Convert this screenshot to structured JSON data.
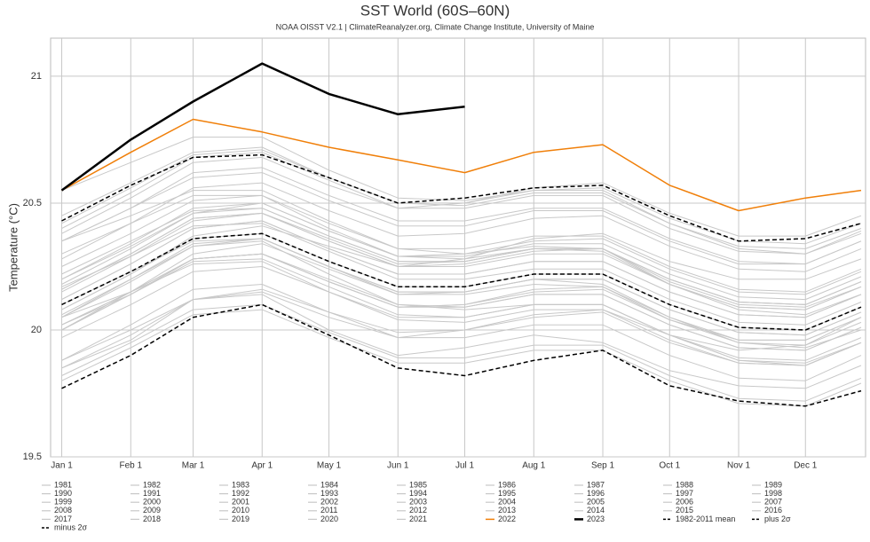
{
  "chart_data": {
    "type": "line",
    "title": "SST World (60S–60N)",
    "subtitle": "NOAA OISST V2.1 | ClimateReanalyzer.org, Climate Change Institute, University of Maine",
    "y_label": "Temperature (°C)",
    "x": [
      1,
      32,
      60,
      91,
      121,
      152,
      182,
      213,
      244,
      274,
      305,
      335,
      360
    ],
    "xlim": [
      -4,
      362
    ],
    "xticks": [
      {
        "value": 1,
        "label": "Jan 1"
      },
      {
        "value": 32,
        "label": "Feb 1"
      },
      {
        "value": 60,
        "label": "Mar 1"
      },
      {
        "value": 91,
        "label": "Apr 1"
      },
      {
        "value": 121,
        "label": "May 1"
      },
      {
        "value": 152,
        "label": "Jun 1"
      },
      {
        "value": 182,
        "label": "Jul 1"
      },
      {
        "value": 213,
        "label": "Aug 1"
      },
      {
        "value": 244,
        "label": "Sep 1"
      },
      {
        "value": 274,
        "label": "Oct 1"
      },
      {
        "value": 305,
        "label": "Nov 1"
      },
      {
        "value": 335,
        "label": "Dec 1"
      }
    ],
    "ylim": [
      19.5,
      21.15
    ],
    "yticks": [
      19.5,
      20,
      20.5,
      21
    ],
    "grid": true,
    "series": [
      {
        "name": "1981",
        "color": "#c8c8c8",
        "values": [
          19.85,
          19.96,
          20.12,
          20.14,
          20.0,
          19.9,
          19.93,
          19.98,
          19.95,
          19.84,
          19.78,
          19.77,
          19.86
        ]
      },
      {
        "name": "1982",
        "color": "#c8c8c8",
        "values": [
          19.88,
          20.0,
          20.12,
          20.15,
          20.05,
          19.97,
          20.0,
          20.06,
          20.08,
          19.98,
          19.92,
          19.94,
          20.05
        ]
      },
      {
        "name": "1983",
        "color": "#c8c8c8",
        "values": [
          20.05,
          20.2,
          20.33,
          20.35,
          20.22,
          20.1,
          20.08,
          20.1,
          20.1,
          19.98,
          19.88,
          19.87,
          19.95
        ]
      },
      {
        "name": "1984",
        "color": "#c8c8c8",
        "values": [
          19.82,
          19.95,
          20.08,
          20.1,
          19.99,
          19.89,
          19.89,
          19.94,
          19.94,
          19.82,
          19.73,
          19.72,
          19.81
        ]
      },
      {
        "name": "1985",
        "color": "#c8c8c8",
        "values": [
          19.8,
          19.93,
          20.06,
          20.08,
          19.97,
          19.87,
          19.87,
          19.92,
          19.92,
          19.8,
          19.71,
          19.7,
          19.79
        ]
      },
      {
        "name": "1986",
        "color": "#c8c8c8",
        "values": [
          19.85,
          19.98,
          20.12,
          20.16,
          20.07,
          19.99,
          20.0,
          20.05,
          20.07,
          19.95,
          19.87,
          19.86,
          19.95
        ]
      },
      {
        "name": "1987",
        "color": "#c8c8c8",
        "values": [
          20.0,
          20.15,
          20.3,
          20.34,
          20.24,
          20.14,
          20.15,
          20.2,
          20.18,
          20.05,
          19.95,
          19.93,
          20.0
        ]
      },
      {
        "name": "1988",
        "color": "#c8c8c8",
        "values": [
          20.02,
          20.14,
          20.27,
          20.28,
          20.17,
          20.06,
          20.05,
          20.1,
          20.1,
          19.98,
          19.88,
          19.86,
          19.95
        ]
      },
      {
        "name": "1989",
        "color": "#c8c8c8",
        "values": [
          19.88,
          20.02,
          20.16,
          20.18,
          20.07,
          19.97,
          19.97,
          20.02,
          20.02,
          19.9,
          19.81,
          19.8,
          19.9
        ]
      },
      {
        "name": "1990",
        "color": "#c8c8c8",
        "values": [
          20.0,
          20.14,
          20.28,
          20.3,
          20.2,
          20.1,
          20.09,
          20.14,
          20.14,
          20.02,
          19.93,
          19.92,
          20.01
        ]
      },
      {
        "name": "1991",
        "color": "#c8c8c8",
        "values": [
          20.02,
          20.15,
          20.28,
          20.3,
          20.19,
          20.09,
          20.1,
          20.15,
          20.16,
          20.04,
          19.96,
          19.96,
          20.05
        ]
      },
      {
        "name": "1992",
        "color": "#c8c8c8",
        "values": [
          20.05,
          20.15,
          20.26,
          20.27,
          20.15,
          20.04,
          20.03,
          20.08,
          20.08,
          19.96,
          19.87,
          19.86,
          19.95
        ]
      },
      {
        "name": "1993",
        "color": "#c8c8c8",
        "values": [
          19.97,
          20.1,
          20.23,
          20.25,
          20.15,
          20.05,
          20.05,
          20.1,
          20.1,
          19.98,
          19.89,
          19.88,
          19.97
        ]
      },
      {
        "name": "1994",
        "color": "#c8c8c8",
        "values": [
          20.02,
          20.15,
          20.28,
          20.3,
          20.19,
          20.09,
          20.1,
          20.16,
          20.17,
          20.05,
          19.96,
          19.96,
          20.05
        ]
      },
      {
        "name": "1995",
        "color": "#c8c8c8",
        "values": [
          20.1,
          20.23,
          20.35,
          20.36,
          20.25,
          20.14,
          20.14,
          20.18,
          20.17,
          20.04,
          19.95,
          19.94,
          20.03
        ]
      },
      {
        "name": "1996",
        "color": "#c8c8c8",
        "values": [
          20.0,
          20.14,
          20.28,
          20.3,
          20.19,
          20.09,
          20.09,
          20.14,
          20.14,
          20.02,
          19.93,
          19.92,
          20.01
        ]
      },
      {
        "name": "1997",
        "color": "#c8c8c8",
        "values": [
          20.08,
          20.22,
          20.37,
          20.41,
          20.33,
          20.25,
          20.28,
          20.36,
          20.38,
          20.27,
          20.2,
          20.2,
          20.28
        ]
      },
      {
        "name": "1998",
        "color": "#c8c8c8",
        "values": [
          20.35,
          20.45,
          20.55,
          20.55,
          20.43,
          20.32,
          20.3,
          20.33,
          20.32,
          20.18,
          20.08,
          20.06,
          20.14
        ]
      },
      {
        "name": "1999",
        "color": "#c8c8c8",
        "values": [
          20.06,
          20.2,
          20.34,
          20.36,
          20.25,
          20.15,
          20.15,
          20.2,
          20.2,
          20.08,
          19.99,
          19.98,
          20.07
        ]
      },
      {
        "name": "2000",
        "color": "#c8c8c8",
        "values": [
          20.05,
          20.19,
          20.33,
          20.36,
          20.25,
          20.15,
          20.15,
          20.2,
          20.2,
          20.08,
          19.99,
          19.98,
          20.07
        ]
      },
      {
        "name": "2001",
        "color": "#c8c8c8",
        "values": [
          20.12,
          20.26,
          20.4,
          20.43,
          20.32,
          20.22,
          20.22,
          20.27,
          20.27,
          20.15,
          20.06,
          20.05,
          20.14
        ]
      },
      {
        "name": "2002",
        "color": "#c8c8c8",
        "values": [
          20.15,
          20.29,
          20.43,
          20.46,
          20.36,
          20.26,
          20.27,
          20.32,
          20.32,
          20.19,
          20.1,
          20.09,
          20.17
        ]
      },
      {
        "name": "2003",
        "color": "#c8c8c8",
        "values": [
          20.22,
          20.35,
          20.47,
          20.48,
          20.37,
          20.27,
          20.27,
          20.32,
          20.32,
          20.2,
          20.11,
          20.1,
          20.19
        ]
      },
      {
        "name": "2004",
        "color": "#c8c8c8",
        "values": [
          20.16,
          20.3,
          20.44,
          20.46,
          20.35,
          20.25,
          20.25,
          20.3,
          20.3,
          20.18,
          20.09,
          20.08,
          20.17
        ]
      },
      {
        "name": "2005",
        "color": "#c8c8c8",
        "values": [
          20.2,
          20.33,
          20.46,
          20.48,
          20.37,
          20.27,
          20.27,
          20.32,
          20.32,
          20.2,
          20.11,
          20.1,
          20.19
        ]
      },
      {
        "name": "2006",
        "color": "#c8c8c8",
        "values": [
          20.16,
          20.3,
          20.44,
          20.46,
          20.35,
          20.25,
          20.26,
          20.31,
          20.32,
          20.2,
          20.11,
          20.1,
          20.19
        ]
      },
      {
        "name": "2007",
        "color": "#c8c8c8",
        "values": [
          20.17,
          20.29,
          20.41,
          20.42,
          20.31,
          20.2,
          20.2,
          20.24,
          20.24,
          20.12,
          20.03,
          20.02,
          20.11
        ]
      },
      {
        "name": "2008",
        "color": "#c8c8c8",
        "values": [
          20.08,
          20.22,
          20.36,
          20.38,
          20.27,
          20.17,
          20.17,
          20.22,
          20.22,
          20.1,
          20.01,
          20.0,
          20.09
        ]
      },
      {
        "name": "2009",
        "color": "#c8c8c8",
        "values": [
          20.18,
          20.32,
          20.46,
          20.5,
          20.39,
          20.29,
          20.3,
          20.35,
          20.36,
          20.24,
          20.15,
          20.14,
          20.23
        ]
      },
      {
        "name": "2010",
        "color": "#c8c8c8",
        "values": [
          20.3,
          20.42,
          20.53,
          20.53,
          20.4,
          20.29,
          20.28,
          20.32,
          20.31,
          20.18,
          20.09,
          20.08,
          20.17
        ]
      },
      {
        "name": "2011",
        "color": "#c8c8c8",
        "values": [
          20.12,
          20.26,
          20.4,
          20.43,
          20.32,
          20.22,
          20.22,
          20.27,
          20.27,
          20.15,
          20.06,
          20.05,
          20.14
        ]
      },
      {
        "name": "2012",
        "color": "#c8c8c8",
        "values": [
          20.2,
          20.34,
          20.48,
          20.5,
          20.39,
          20.29,
          20.29,
          20.34,
          20.34,
          20.22,
          20.13,
          20.12,
          20.21
        ]
      },
      {
        "name": "2013",
        "color": "#c8c8c8",
        "values": [
          20.25,
          20.38,
          20.51,
          20.53,
          20.42,
          20.32,
          20.32,
          20.37,
          20.37,
          20.25,
          20.16,
          20.15,
          20.24
        ]
      },
      {
        "name": "2014",
        "color": "#c8c8c8",
        "values": [
          20.28,
          20.42,
          20.56,
          20.58,
          20.47,
          20.37,
          20.38,
          20.44,
          20.45,
          20.33,
          20.24,
          20.23,
          20.32
        ]
      },
      {
        "name": "2015",
        "color": "#c8c8c8",
        "values": [
          20.38,
          20.52,
          20.66,
          20.68,
          20.57,
          20.48,
          20.5,
          20.56,
          20.58,
          20.46,
          20.37,
          20.37,
          20.45
        ]
      },
      {
        "name": "2016",
        "color": "#c8c8c8",
        "values": [
          20.55,
          20.66,
          20.76,
          20.76,
          20.63,
          20.52,
          20.51,
          20.55,
          20.55,
          20.42,
          20.32,
          20.3,
          20.38
        ]
      },
      {
        "name": "2017",
        "color": "#c8c8c8",
        "values": [
          20.4,
          20.54,
          20.68,
          20.7,
          20.59,
          20.48,
          20.48,
          20.53,
          20.53,
          20.4,
          20.31,
          20.3,
          20.39
        ]
      },
      {
        "name": "2018",
        "color": "#c8c8c8",
        "values": [
          20.35,
          20.48,
          20.6,
          20.62,
          20.51,
          20.41,
          20.41,
          20.47,
          20.47,
          20.35,
          20.26,
          20.26,
          20.35
        ]
      },
      {
        "name": "2019",
        "color": "#c8c8c8",
        "values": [
          20.42,
          20.56,
          20.69,
          20.71,
          20.6,
          20.5,
          20.5,
          20.55,
          20.56,
          20.44,
          20.35,
          20.34,
          20.42
        ]
      },
      {
        "name": "2020",
        "color": "#c8c8c8",
        "values": [
          20.45,
          20.58,
          20.7,
          20.72,
          20.6,
          20.5,
          20.49,
          20.54,
          20.54,
          20.42,
          20.33,
          20.32,
          20.4
        ]
      },
      {
        "name": "2021",
        "color": "#c8c8c8",
        "values": [
          20.35,
          20.48,
          20.62,
          20.64,
          20.53,
          20.43,
          20.43,
          20.48,
          20.48,
          20.36,
          20.27,
          20.26,
          20.35
        ]
      },
      {
        "name": "2022",
        "color": "#f07f09",
        "width": 1.5,
        "values": [
          20.55,
          20.7,
          20.83,
          20.78,
          20.72,
          20.67,
          20.62,
          20.7,
          20.73,
          20.57,
          20.47,
          20.52,
          20.55
        ]
      },
      {
        "name": "2023",
        "color": "#000000",
        "width": 2.5,
        "values": [
          20.55,
          20.75,
          20.9,
          21.05,
          20.93,
          20.85,
          20.88,
          null,
          null,
          null,
          null,
          null,
          null
        ]
      },
      {
        "name": "1982-2011 mean",
        "color": "#000000",
        "dash": true,
        "values": [
          20.1,
          20.23,
          20.36,
          20.38,
          20.27,
          20.17,
          20.17,
          20.22,
          20.22,
          20.1,
          20.01,
          20.0,
          20.09
        ]
      },
      {
        "name": "plus 2σ",
        "color": "#000000",
        "dash": true,
        "values": [
          20.43,
          20.57,
          20.68,
          20.69,
          20.6,
          20.5,
          20.52,
          20.56,
          20.57,
          20.45,
          20.35,
          20.36,
          20.42
        ]
      },
      {
        "name": "minus 2σ",
        "color": "#000000",
        "dash": true,
        "values": [
          19.77,
          19.9,
          20.05,
          20.1,
          19.98,
          19.85,
          19.82,
          19.88,
          19.92,
          19.78,
          19.72,
          19.7,
          19.76
        ]
      }
    ]
  }
}
